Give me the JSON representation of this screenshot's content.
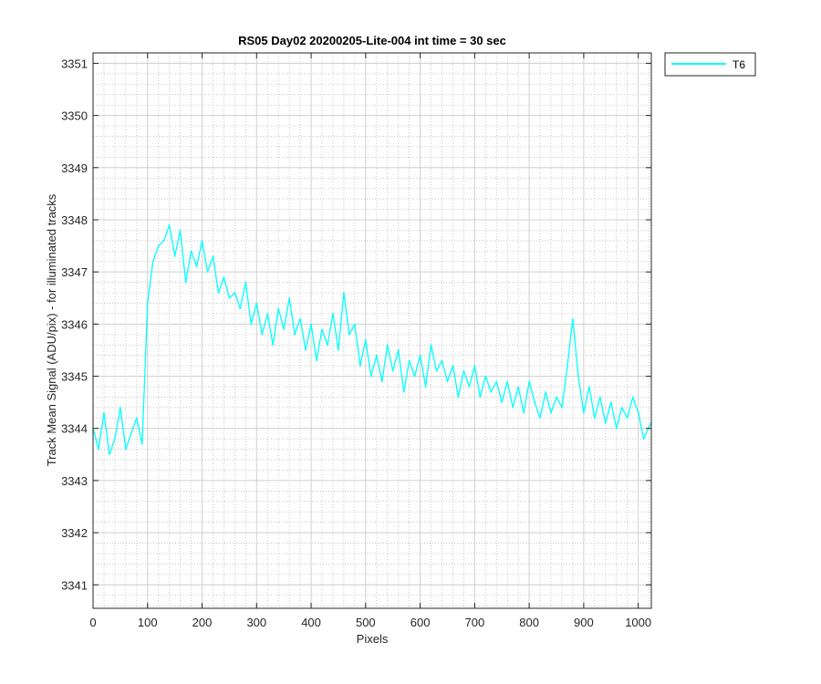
{
  "chart_data": {
    "type": "line",
    "title": "RS05 Day02 20200205-Lite-004 int time = 30 sec",
    "xlabel": "Pixels",
    "ylabel": "Track Mean Signal (ADU/pix) - for illuminated tracks",
    "xlim": [
      0,
      1024
    ],
    "ylim": [
      3340.55,
      3351.2
    ],
    "xticks": [
      0,
      100,
      200,
      300,
      400,
      500,
      600,
      700,
      800,
      900,
      1000
    ],
    "xtick_labels": [
      "0",
      "100",
      "200",
      "300",
      "400",
      "500",
      "600",
      "700",
      "800",
      "900",
      "1000"
    ],
    "yticks": [
      3341,
      3342,
      3343,
      3344,
      3345,
      3346,
      3347,
      3348,
      3349,
      3350,
      3351
    ],
    "ytick_labels": [
      "3341",
      "3342",
      "3343",
      "3344",
      "3345",
      "3346",
      "3347",
      "3348",
      "3349",
      "3350",
      "3351"
    ],
    "grid": true,
    "minor_grid": true,
    "legend_position": "outside-top-right",
    "series": [
      {
        "name": "T6",
        "color": "#00ffff",
        "x": [
          0,
          10,
          20,
          30,
          40,
          50,
          60,
          70,
          80,
          90,
          100,
          110,
          120,
          130,
          140,
          150,
          160,
          170,
          180,
          190,
          200,
          210,
          220,
          230,
          240,
          250,
          260,
          270,
          280,
          290,
          300,
          310,
          320,
          330,
          340,
          350,
          360,
          370,
          380,
          390,
          400,
          410,
          420,
          430,
          440,
          450,
          460,
          470,
          480,
          490,
          500,
          510,
          520,
          530,
          540,
          550,
          560,
          570,
          580,
          590,
          600,
          610,
          620,
          630,
          640,
          650,
          660,
          670,
          680,
          690,
          700,
          710,
          720,
          730,
          740,
          750,
          760,
          770,
          780,
          790,
          800,
          810,
          820,
          830,
          840,
          850,
          860,
          870,
          880,
          890,
          900,
          910,
          920,
          930,
          940,
          950,
          960,
          970,
          980,
          990,
          1000,
          1010,
          1023
        ],
        "y": [
          3344.0,
          3343.6,
          3344.3,
          3343.5,
          3343.8,
          3344.4,
          3343.6,
          3343.9,
          3344.2,
          3343.7,
          3346.4,
          3347.2,
          3347.5,
          3347.6,
          3347.9,
          3347.3,
          3347.8,
          3346.8,
          3347.4,
          3347.1,
          3347.6,
          3347.0,
          3347.3,
          3346.6,
          3346.9,
          3346.5,
          3346.6,
          3346.3,
          3346.8,
          3346.0,
          3346.4,
          3345.8,
          3346.2,
          3345.6,
          3346.3,
          3345.9,
          3346.5,
          3345.8,
          3346.1,
          3345.5,
          3346.0,
          3345.3,
          3345.9,
          3345.6,
          3346.2,
          3345.5,
          3346.6,
          3345.8,
          3346.0,
          3345.2,
          3345.7,
          3345.0,
          3345.4,
          3344.9,
          3345.6,
          3345.1,
          3345.5,
          3344.7,
          3345.3,
          3345.0,
          3345.4,
          3344.8,
          3345.6,
          3345.1,
          3345.3,
          3344.9,
          3345.2,
          3344.6,
          3345.1,
          3344.8,
          3345.2,
          3344.6,
          3345.0,
          3344.7,
          3344.9,
          3344.5,
          3344.9,
          3344.4,
          3344.8,
          3344.3,
          3344.9,
          3344.5,
          3344.2,
          3344.7,
          3344.3,
          3344.6,
          3344.4,
          3345.2,
          3346.1,
          3345.0,
          3344.3,
          3344.8,
          3344.2,
          3344.6,
          3344.1,
          3344.5,
          3344.0,
          3344.4,
          3344.2,
          3344.6,
          3344.3,
          3343.8,
          3344.1
        ]
      }
    ]
  }
}
